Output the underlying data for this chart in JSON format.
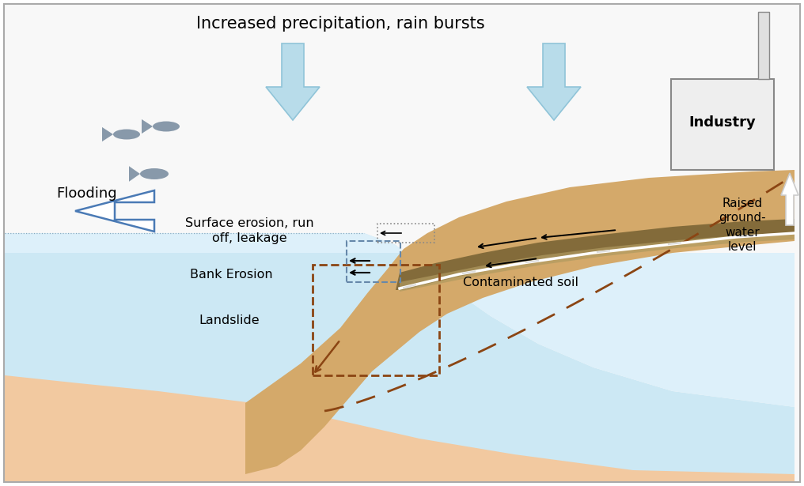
{
  "title": "Increased precipitation, rain bursts",
  "bg_color": "#ffffff",
  "water_color": "#cce8f4",
  "water_color_light": "#ddf0fa",
  "sand_color": "#f2c9a0",
  "slope_color": "#d4a96a",
  "contam_color": "#8b7340",
  "rain_arrow_color": "#b8dcea",
  "rain_arrow_edge": "#90c4d8",
  "flood_arrow_edge": "#4a7ab5",
  "industry_color": "#eeeeee",
  "industry_edge": "#888888",
  "gw_dashed_color": "#8b4513",
  "land_rect_color": "#8b4513",
  "bank_rect_color": "#6688aa",
  "surf_rect_color": "#888888",
  "fish_color": "#8899aa",
  "labels": {
    "flooding": "Flooding",
    "surface_erosion": "Surface erosion, run\noff, leakage",
    "bank_erosion": "Bank Erosion",
    "landslide": "Landslide",
    "contaminated_soil": "Contaminated soil",
    "raised_groundwater": "Raised\nground-\nwater\nlevel",
    "industry": "Industry"
  }
}
